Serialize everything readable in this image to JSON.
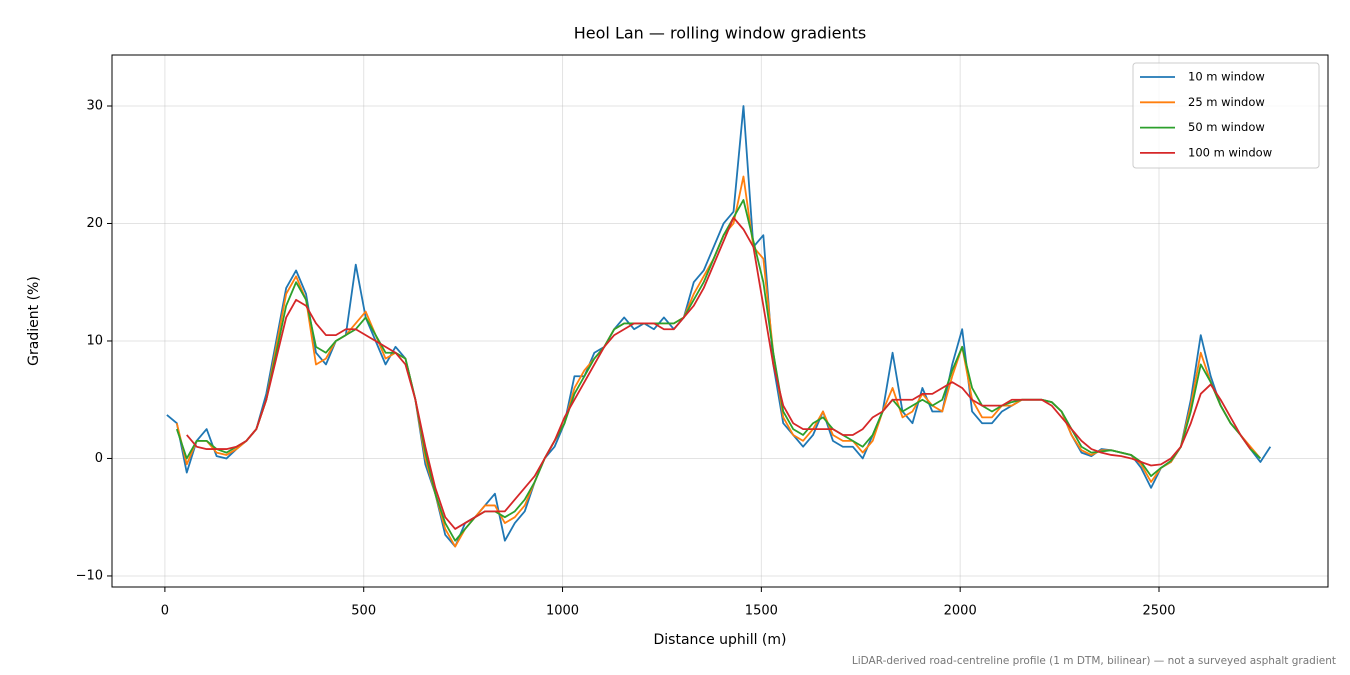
{
  "chart_data": {
    "type": "line",
    "title": "Heol Lan — rolling window gradients",
    "xlabel": "Distance uphill (m)",
    "ylabel": "Gradient (%)",
    "footnote": "LiDAR-derived road-centreline profile (1 m DTM, bilinear) — not a surveyed asphalt gradient",
    "xlim": [
      -133,
      2925
    ],
    "ylim": [
      -10.94,
      34.34
    ],
    "xticks": [
      0,
      500,
      1000,
      1500,
      2000,
      2500
    ],
    "yticks": [
      {
        "value": -10,
        "label": "−10"
      },
      0,
      10,
      20,
      30
    ],
    "grid": true,
    "legend": "upper right",
    "x": [
      5,
      30,
      55,
      80,
      105,
      130,
      155,
      180,
      205,
      230,
      255,
      280,
      305,
      330,
      355,
      380,
      405,
      430,
      455,
      480,
      505,
      530,
      555,
      580,
      605,
      630,
      655,
      680,
      705,
      730,
      755,
      780,
      805,
      830,
      855,
      880,
      905,
      930,
      955,
      980,
      1005,
      1030,
      1055,
      1080,
      1105,
      1130,
      1155,
      1180,
      1205,
      1230,
      1255,
      1280,
      1305,
      1330,
      1355,
      1380,
      1405,
      1430,
      1455,
      1480,
      1505,
      1530,
      1555,
      1580,
      1605,
      1630,
      1655,
      1680,
      1705,
      1730,
      1755,
      1780,
      1805,
      1830,
      1855,
      1880,
      1905,
      1930,
      1955,
      1980,
      2005,
      2030,
      2055,
      2080,
      2105,
      2130,
      2155,
      2180,
      2205,
      2230,
      2255,
      2280,
      2305,
      2330,
      2355,
      2380,
      2405,
      2430,
      2455,
      2480,
      2505,
      2530,
      2555,
      2580,
      2605,
      2630,
      2655,
      2680,
      2705,
      2730,
      2755,
      2780
    ],
    "series": [
      {
        "name": "10 m window",
        "color": "#1f77b4",
        "values": [
          3.7,
          3,
          -1.2,
          1.5,
          2.5,
          0.2,
          0,
          0.8,
          1.5,
          2.5,
          5.5,
          10,
          14.5,
          16,
          14,
          9,
          8,
          10,
          10.5,
          16.5,
          12,
          10,
          8,
          9.5,
          8.5,
          5,
          -0.5,
          -3,
          -6.5,
          -7.5,
          -5.5,
          -5,
          -4,
          -3,
          -7,
          -5.5,
          -4.5,
          -2,
          0,
          1,
          3,
          7,
          7,
          9,
          9.5,
          11,
          12,
          11,
          11.5,
          11,
          12,
          11,
          12,
          15,
          16,
          18,
          20,
          21,
          30,
          18,
          19,
          8,
          3,
          2,
          1,
          2,
          4,
          1.5,
          1,
          1,
          0,
          2,
          4,
          9,
          4,
          3,
          6,
          4,
          4,
          8,
          11,
          4,
          3,
          3,
          4,
          4.5,
          5,
          5,
          5,
          4.8,
          4,
          2,
          0.5,
          0.2,
          0.8,
          0.7,
          0.5,
          0.3,
          -0.8,
          -2.5,
          -0.8,
          -0.3,
          1,
          5,
          10.5,
          7,
          4.5,
          3,
          2,
          0.8,
          -0.3,
          1
        ]
      },
      {
        "name": "25 m window",
        "color": "#ff7f0e",
        "values": [
          null,
          3,
          -0.5,
          1.5,
          1.5,
          0.5,
          0.3,
          0.8,
          1.5,
          2.5,
          5,
          9.5,
          14,
          15.5,
          13.5,
          8,
          8.5,
          10,
          10.5,
          11.5,
          12.5,
          10.5,
          8.5,
          9,
          8.5,
          5,
          0,
          -3,
          -6,
          -7.5,
          -6,
          -5,
          -4,
          -4,
          -5.5,
          -5,
          -4,
          -2,
          0,
          1.5,
          3,
          6,
          7.5,
          8.5,
          9.5,
          11,
          11.5,
          11.5,
          11.5,
          11.5,
          11.5,
          11.5,
          12,
          14,
          15.5,
          17,
          19,
          20,
          24,
          18,
          17,
          9,
          3.5,
          2,
          1.5,
          2.5,
          4,
          2,
          1.5,
          1.5,
          0.5,
          1.5,
          4,
          6,
          3.5,
          4,
          5.5,
          4.5,
          4,
          7,
          9.5,
          5,
          3.5,
          3.5,
          4.5,
          4.5,
          5,
          5,
          5,
          4.8,
          4,
          2,
          0.7,
          0.3,
          0.7,
          0.7,
          0.5,
          0.3,
          -0.5,
          -2,
          -0.8,
          -0.3,
          1,
          4.5,
          9,
          6.5,
          4.5,
          3,
          2,
          1,
          0,
          null
        ]
      },
      {
        "name": "50 m window",
        "color": "#2ca02c",
        "values": [
          null,
          2.5,
          0,
          1.5,
          1.5,
          0.8,
          0.5,
          1,
          1.5,
          2.5,
          5,
          9,
          13,
          15,
          13.5,
          9.5,
          9,
          10,
          10.5,
          11,
          12,
          10.5,
          9,
          9,
          8.5,
          5,
          0.5,
          -3,
          -5.5,
          -7,
          -6,
          -5,
          -4.5,
          -4.5,
          -5,
          -4.5,
          -3.5,
          -2,
          0,
          1.5,
          3,
          5.5,
          7,
          8.5,
          9.5,
          11,
          11.5,
          11.5,
          11.5,
          11.5,
          11.5,
          11.5,
          12,
          13.5,
          15,
          17,
          19,
          20.5,
          22,
          18.5,
          15,
          9,
          4,
          2.5,
          2,
          3,
          3.5,
          2.5,
          2,
          1.5,
          1,
          2,
          4,
          5,
          4,
          4.5,
          5,
          4.5,
          5,
          7.5,
          9.5,
          6,
          4.5,
          4,
          4.5,
          4.8,
          5,
          5,
          5,
          4.8,
          4,
          2.5,
          1,
          0.5,
          0.6,
          0.7,
          0.5,
          0.3,
          -0.3,
          -1.5,
          -0.8,
          -0.2,
          1,
          4,
          8,
          6.5,
          4.5,
          3,
          2,
          0.8,
          0,
          null
        ]
      },
      {
        "name": "100 m window",
        "color": "#d62728",
        "values": [
          null,
          null,
          2,
          1,
          0.8,
          0.8,
          0.8,
          1,
          1.5,
          2.5,
          5,
          8.5,
          12,
          13.5,
          13,
          11.5,
          10.5,
          10.5,
          11,
          11,
          10.5,
          10,
          9.5,
          9,
          8,
          5,
          1,
          -2.5,
          -5,
          -6,
          -5.5,
          -5,
          -4.5,
          -4.5,
          -4.5,
          -3.5,
          -2.5,
          -1.5,
          0,
          1.5,
          3.5,
          5,
          6.5,
          8,
          9.5,
          10.5,
          11,
          11.5,
          11.5,
          11.5,
          11,
          11,
          12,
          13,
          14.5,
          16.5,
          18.5,
          20.5,
          19.5,
          18,
          13,
          8,
          4.5,
          3,
          2.5,
          2.5,
          2.5,
          2.5,
          2,
          2,
          2.5,
          3.5,
          4,
          5,
          5,
          5,
          5.5,
          5.5,
          6,
          6.5,
          6,
          5,
          4.5,
          4.5,
          4.5,
          5,
          5,
          5,
          5,
          4.5,
          3.5,
          2.5,
          1.5,
          0.8,
          0.5,
          0.3,
          0.2,
          0,
          -0.3,
          -0.6,
          -0.5,
          0,
          1,
          3,
          5.5,
          6.3,
          5,
          3.5,
          2,
          0.8,
          null,
          null
        ]
      }
    ]
  }
}
